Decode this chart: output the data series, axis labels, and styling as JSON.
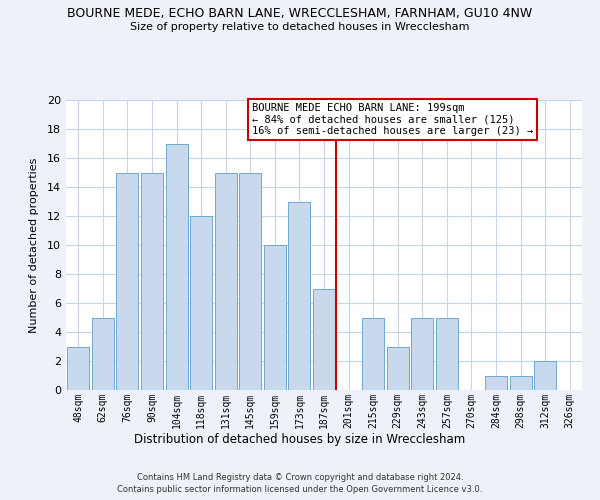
{
  "title": "BOURNE MEDE, ECHO BARN LANE, WRECCLESHAM, FARNHAM, GU10 4NW",
  "subtitle": "Size of property relative to detached houses in Wrecclesham",
  "xlabel": "Distribution of detached houses by size in Wrecclesham",
  "ylabel": "Number of detached properties",
  "bar_labels": [
    "48sqm",
    "62sqm",
    "76sqm",
    "90sqm",
    "104sqm",
    "118sqm",
    "131sqm",
    "145sqm",
    "159sqm",
    "173sqm",
    "187sqm",
    "201sqm",
    "215sqm",
    "229sqm",
    "243sqm",
    "257sqm",
    "270sqm",
    "284sqm",
    "298sqm",
    "312sqm",
    "326sqm"
  ],
  "bar_values": [
    3,
    5,
    15,
    15,
    17,
    12,
    15,
    15,
    10,
    13,
    7,
    0,
    5,
    3,
    5,
    5,
    0,
    1,
    1,
    2,
    0
  ],
  "bar_color": "#c8d8ed",
  "bar_edge_color": "#6fa8d0",
  "vline_color": "#cc0000",
  "ylim": [
    0,
    20
  ],
  "yticks": [
    0,
    2,
    4,
    6,
    8,
    10,
    12,
    14,
    16,
    18,
    20
  ],
  "annotation_title": "BOURNE MEDE ECHO BARN LANE: 199sqm",
  "annotation_line1": "← 84% of detached houses are smaller (125)",
  "annotation_line2": "16% of semi-detached houses are larger (23) →",
  "footer1": "Contains HM Land Registry data © Crown copyright and database right 2024.",
  "footer2": "Contains public sector information licensed under the Open Government Licence v3.0.",
  "bg_color": "#eef2f8",
  "plot_bg_color": "#ffffff",
  "grid_color": "#c5d5e8"
}
